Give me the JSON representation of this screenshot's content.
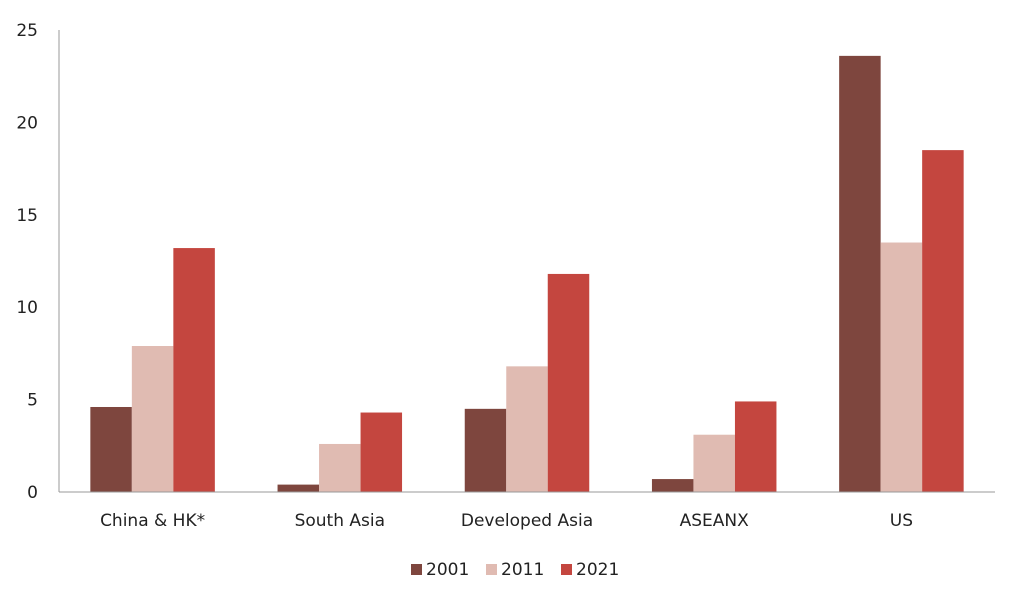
{
  "chart_data": {
    "type": "bar",
    "title": "",
    "xlabel": "",
    "ylabel": "",
    "categories": [
      "China & HK*",
      "South Asia",
      "Developed Asia",
      "ASEANX",
      "US"
    ],
    "series": [
      {
        "name": "2001",
        "color": "#7e463e",
        "values": [
          4.6,
          0.4,
          4.5,
          0.7,
          23.6
        ]
      },
      {
        "name": "2011",
        "color": "#e0bbb2",
        "values": [
          7.9,
          2.6,
          6.8,
          3.1,
          13.5
        ]
      },
      {
        "name": "2021",
        "color": "#c4463f",
        "values": [
          13.2,
          4.3,
          11.8,
          4.9,
          18.5
        ]
      }
    ],
    "ylim": [
      0,
      25
    ],
    "yticks": [
      0,
      5,
      10,
      15,
      20,
      25
    ],
    "grid": false,
    "legend_position": "bottom-center"
  }
}
